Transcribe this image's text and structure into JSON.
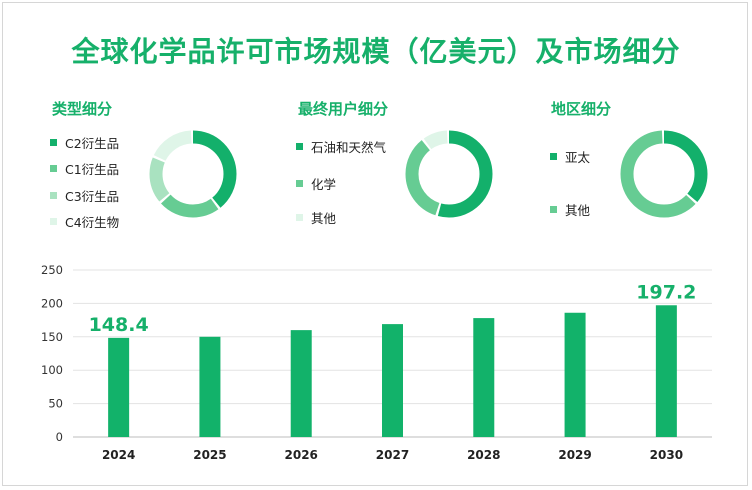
{
  "title": "全球化学品许可市场规模（亿美元）及市场细分",
  "colors": {
    "accent": "#16b06a",
    "bar": "#12b26a",
    "shades": [
      "#13b06b",
      "#66cc93",
      "#a9e2c0",
      "#dff5e8"
    ]
  },
  "donuts": [
    {
      "title": "类型细分",
      "items": [
        {
          "label": "C2衍生品",
          "value": 40
        },
        {
          "label": "C1衍生品",
          "value": 24
        },
        {
          "label": "C3衍生品",
          "value": 18
        },
        {
          "label": "C4衍生物",
          "value": 18
        }
      ]
    },
    {
      "title": "最终用户细分",
      "items": [
        {
          "label": "石油和天然气",
          "value": 55
        },
        {
          "label": "化学",
          "value": 35
        },
        {
          "label": "其他",
          "value": 10
        }
      ]
    },
    {
      "title": "地区细分",
      "items": [
        {
          "label": "亚太",
          "value": 37
        },
        {
          "label": "其他",
          "value": 63
        }
      ]
    }
  ],
  "chart_data": {
    "type": "bar",
    "categories": [
      "2024",
      "2025",
      "2026",
      "2027",
      "2028",
      "2029",
      "2030"
    ],
    "values": [
      148.4,
      150,
      160,
      169,
      178,
      186,
      197.2
    ],
    "data_labels": [
      "148.4",
      "",
      "",
      "",
      "",
      "",
      "197.2"
    ],
    "ylim": [
      0,
      250
    ],
    "yticks": [
      "0",
      "50",
      "100",
      "150",
      "200",
      "250"
    ],
    "grid": true
  }
}
